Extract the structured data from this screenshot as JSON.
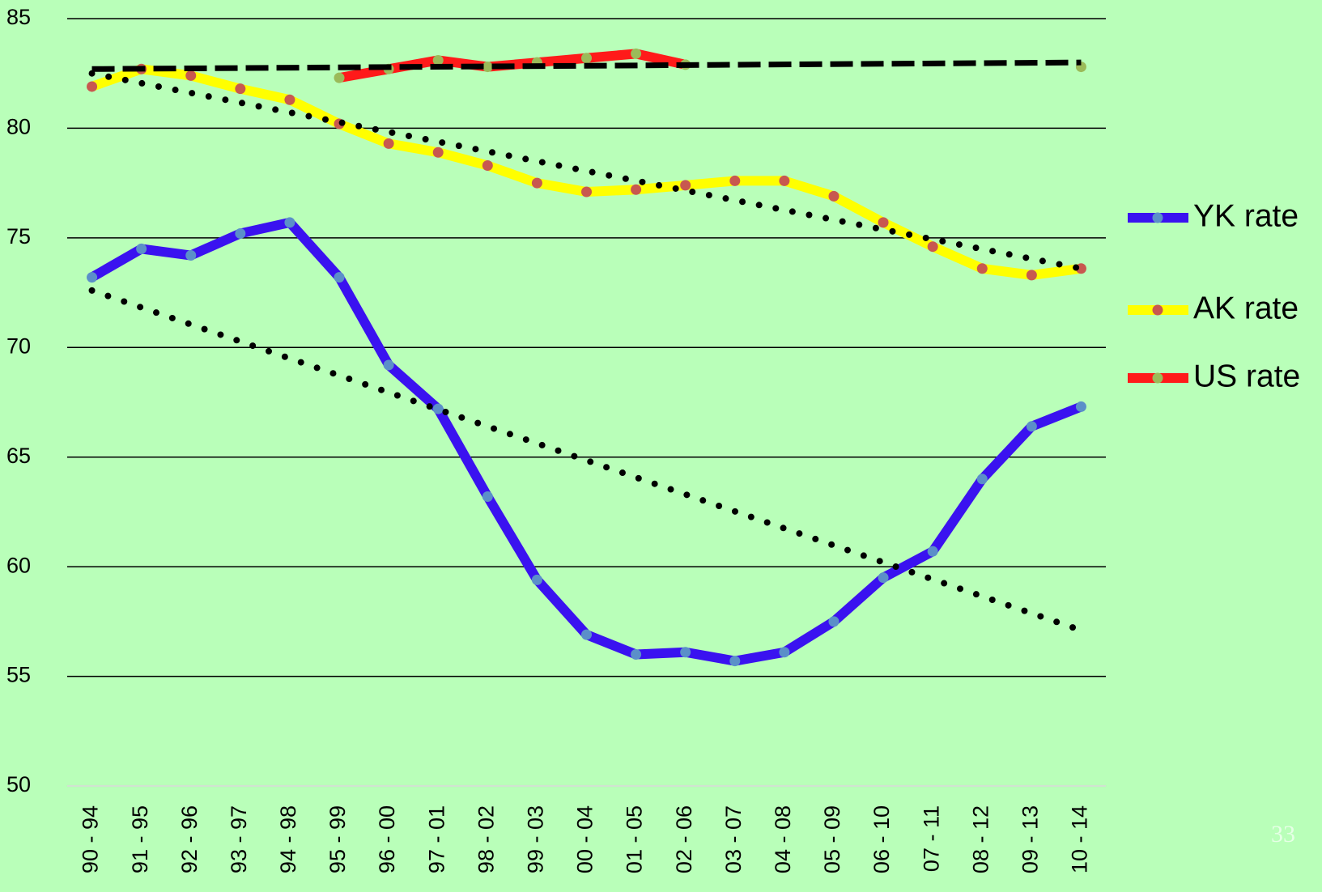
{
  "chart_data": {
    "type": "line",
    "categories": [
      "90 - 94",
      "91 - 95",
      "92 - 96",
      "93 - 97",
      "94 - 98",
      "95 - 99",
      "96 - 00",
      "97 - 01",
      "98 - 02",
      "99 - 03",
      "00 - 04",
      "01 - 05",
      "02 - 06",
      "03 - 07",
      "04 - 08",
      "05 - 09",
      "06 - 10",
      "07 - 11",
      "08 - 12",
      "09 - 13",
      "10 - 14"
    ],
    "series": [
      {
        "name": "YK rate",
        "color": "#3a12f0",
        "marker_color": "#5b8fc9",
        "values": [
          73.2,
          74.5,
          74.2,
          75.2,
          75.7,
          73.2,
          69.2,
          67.2,
          63.2,
          59.4,
          56.9,
          56.0,
          56.1,
          55.7,
          56.1,
          57.5,
          59.5,
          60.7,
          64.0,
          66.4,
          67.3
        ],
        "trend": {
          "start": 72.6,
          "end": 57.1,
          "dash": "dotted"
        }
      },
      {
        "name": "AK rate",
        "color": "#ffff00",
        "marker_color": "#c8584f",
        "values": [
          81.9,
          82.7,
          82.4,
          81.8,
          81.3,
          80.2,
          79.3,
          78.9,
          78.3,
          77.5,
          77.1,
          77.2,
          77.4,
          77.6,
          77.6,
          76.9,
          75.7,
          74.6,
          73.6,
          73.3,
          73.6
        ],
        "trend": {
          "start": 82.5,
          "end": 73.6,
          "dash": "dotted"
        }
      },
      {
        "name": "US rate",
        "color": "#ff1a1a",
        "marker_color": "#9bbb59",
        "values": [
          null,
          null,
          null,
          null,
          null,
          82.3,
          82.7,
          83.1,
          82.8,
          83.0,
          83.2,
          83.4,
          82.9,
          null,
          null,
          null,
          null,
          null,
          null,
          null,
          82.8
        ],
        "trend": {
          "start": 82.7,
          "end": 83.0,
          "dash": "dashed"
        }
      }
    ],
    "ylim": [
      50,
      85
    ],
    "yticks": [
      50,
      55,
      60,
      65,
      70,
      75,
      80,
      85
    ],
    "grid": true,
    "background": "#b9ffb9",
    "legend": "right",
    "slide_number": "33"
  }
}
